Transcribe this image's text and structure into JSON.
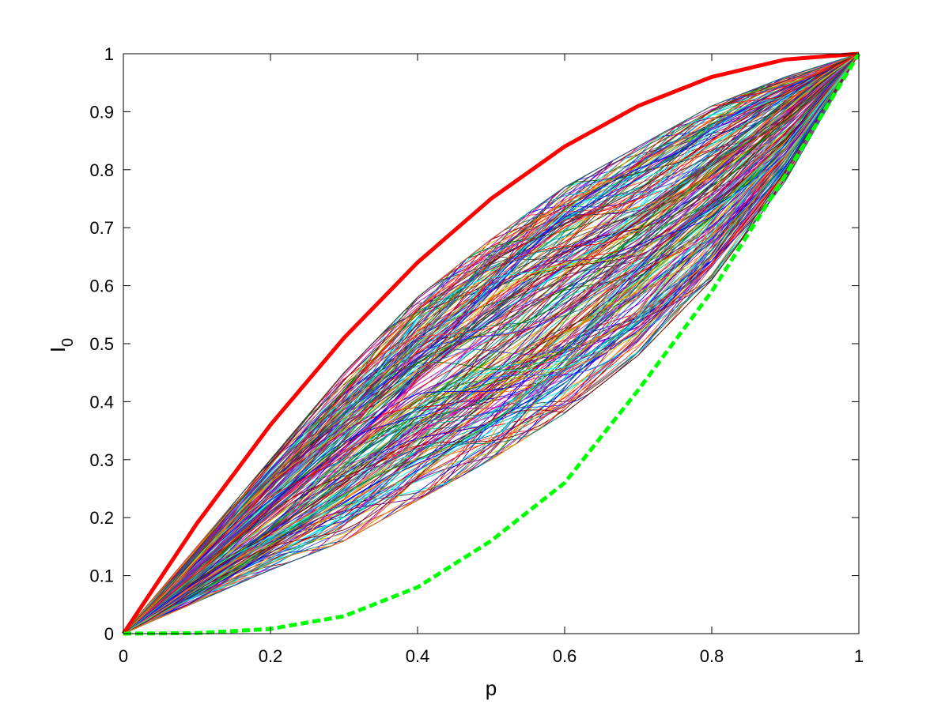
{
  "chart_data": {
    "type": "line",
    "title": "",
    "xlabel": "p",
    "ylabel": {
      "main": "I",
      "subscript": "0"
    },
    "xlim": [
      0,
      1
    ],
    "ylim": [
      0,
      1
    ],
    "grid": false,
    "legend": "none",
    "xticks": [
      "0",
      "0.2",
      "0.4",
      "0.6",
      "0.8",
      "1"
    ],
    "xtick_values": [
      0,
      0.2,
      0.4,
      0.6,
      0.8,
      1
    ],
    "yticks": [
      "0",
      "0.1",
      "0.2",
      "0.3",
      "0.4",
      "0.5",
      "0.6",
      "0.7",
      "0.8",
      "0.9",
      "1"
    ],
    "ytick_values": [
      0,
      0.1,
      0.2,
      0.3,
      0.4,
      0.5,
      0.6,
      0.7,
      0.8,
      0.9,
      1
    ],
    "x": [
      0,
      0.1,
      0.2,
      0.3,
      0.4,
      0.5,
      0.6,
      0.7,
      0.8,
      0.9,
      1
    ],
    "series": [
      {
        "color": "#ff0000",
        "style": "solid-thick",
        "values": [
          0,
          0.19,
          0.36,
          0.51,
          0.64,
          0.75,
          0.84,
          0.91,
          0.96,
          0.99,
          1
        ]
      },
      {
        "color": "#00ff00",
        "style": "dashed-thick",
        "values": [
          0,
          0.0009,
          0.0081,
          0.03,
          0.08,
          0.16,
          0.26,
          0.42,
          0.59,
          0.79,
          1
        ]
      }
    ],
    "envelope": {
      "upper": [
        0,
        0.15,
        0.3,
        0.45,
        0.58,
        0.68,
        0.77,
        0.84,
        0.91,
        0.96,
        1
      ],
      "lower": [
        0,
        0.055,
        0.11,
        0.16,
        0.23,
        0.3,
        0.38,
        0.48,
        0.61,
        0.78,
        1
      ]
    },
    "sample_colors": [
      "#0000ff",
      "#008000",
      "#ff0000",
      "#00bfbf",
      "#bf00bf",
      "#bfbf00",
      "#404040",
      "#ff8000",
      "#800080",
      "#008080",
      "#8b0000",
      "#00ffff",
      "#4040ff",
      "#ff4040"
    ]
  }
}
